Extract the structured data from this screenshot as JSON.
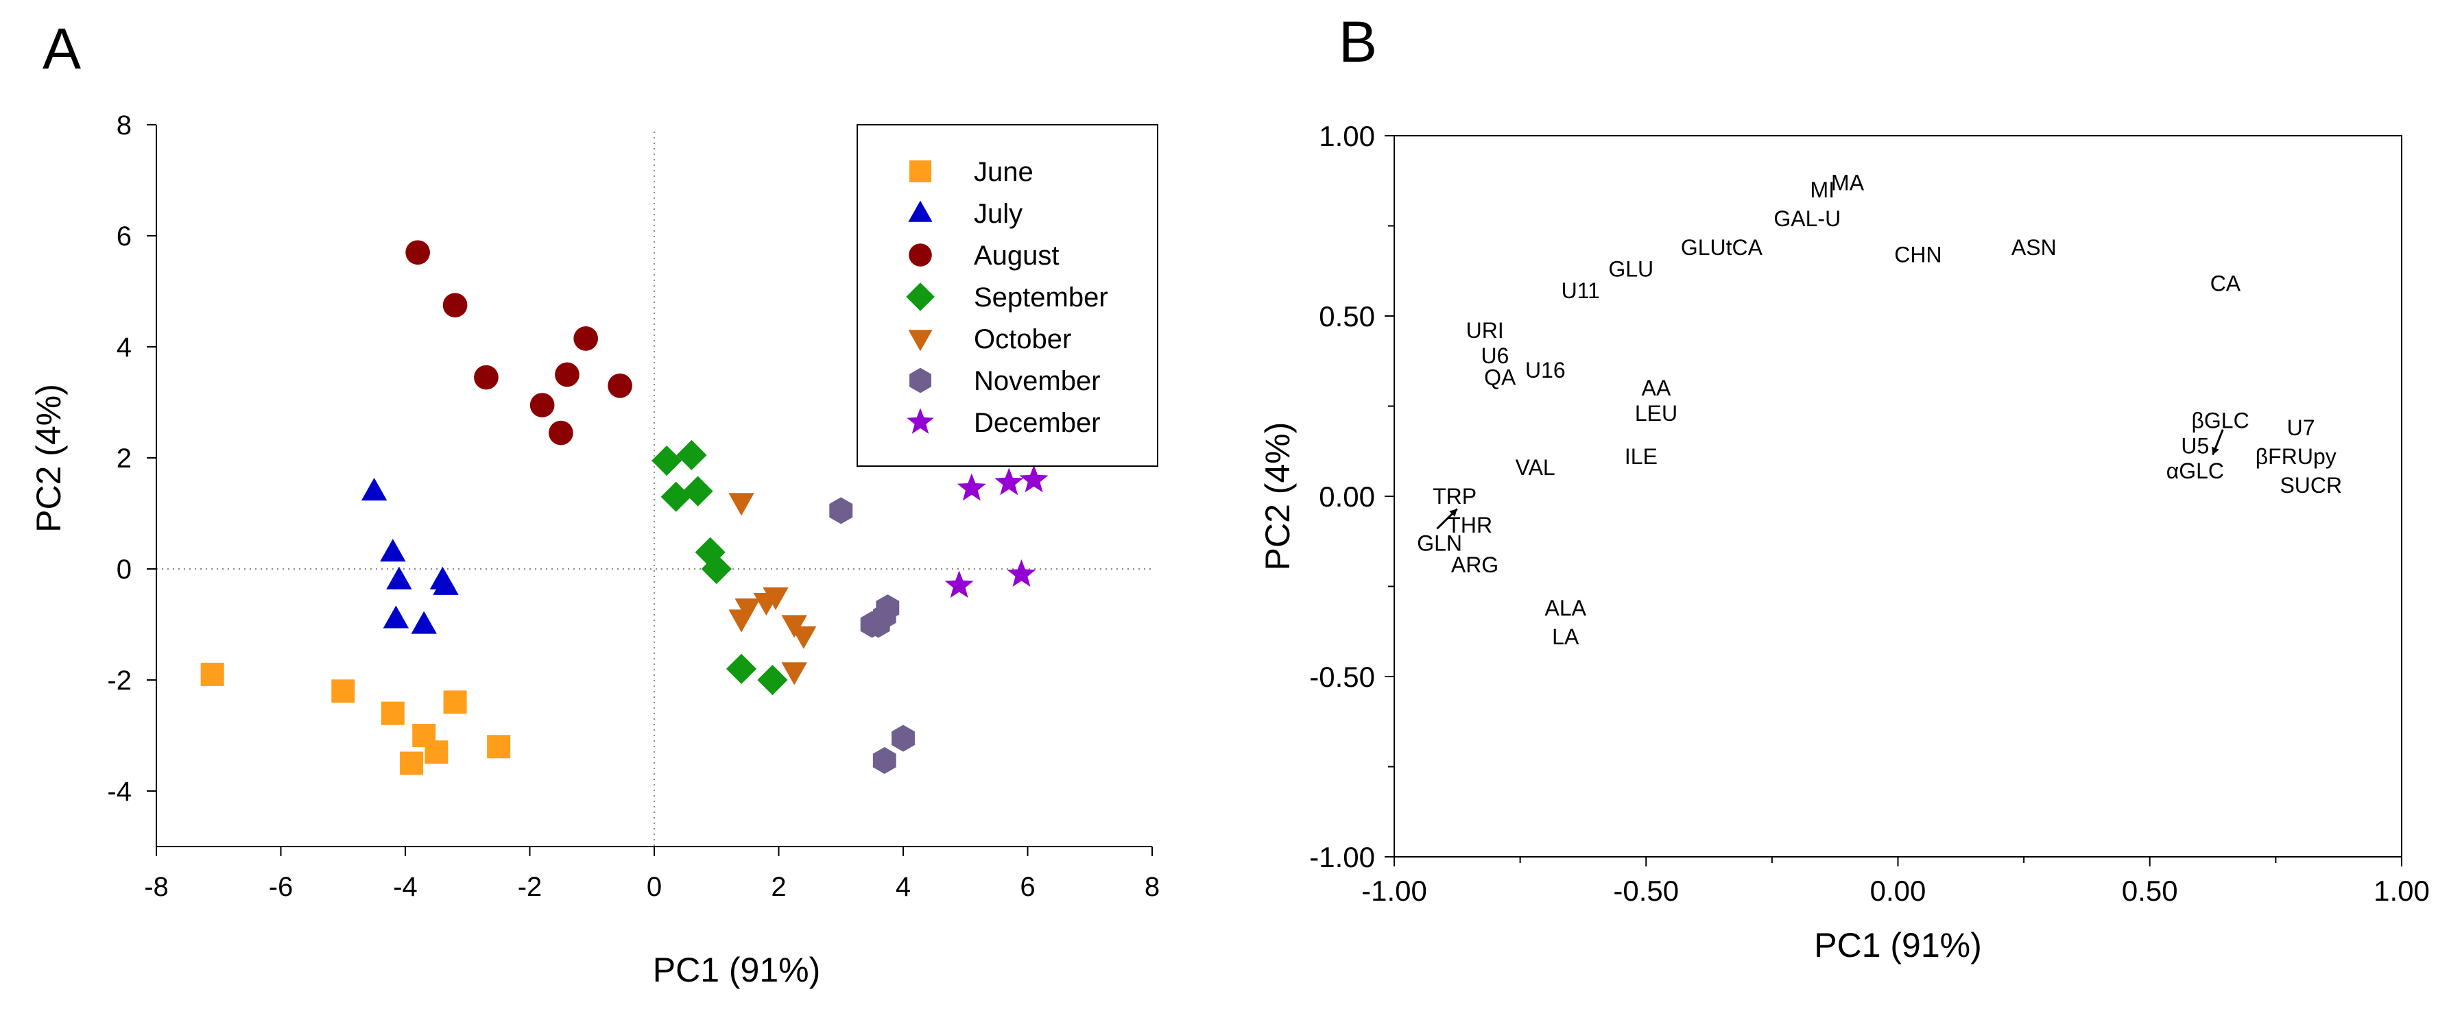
{
  "panels": {
    "a": {
      "label": "A"
    },
    "b": {
      "label": "B"
    }
  },
  "chart_data": [
    {
      "type": "scatter",
      "title": "",
      "xlabel": "PC1 (91%)",
      "ylabel": "PC2 (4%)",
      "xlim": [
        -8,
        8
      ],
      "ylim": [
        -5,
        8
      ],
      "x_ticks": [
        -8,
        -6,
        -4,
        -2,
        0,
        2,
        4,
        6,
        8
      ],
      "y_ticks": [
        -4,
        -2,
        0,
        2,
        4,
        6,
        8
      ],
      "grid": false,
      "reference_lines": "dotted lines at x=0 and y=0",
      "legend_position": "top-right",
      "series": [
        {
          "name": "June",
          "marker": "square",
          "color": "#FF9E1B",
          "points": [
            [
              -7.1,
              -1.9
            ],
            [
              -5.0,
              -2.2
            ],
            [
              -4.2,
              -2.6
            ],
            [
              -3.7,
              -3.0
            ],
            [
              -3.5,
              -3.3
            ],
            [
              -3.2,
              -2.4
            ],
            [
              -3.9,
              -3.5
            ],
            [
              -2.5,
              -3.2
            ]
          ]
        },
        {
          "name": "July",
          "marker": "triangle-up",
          "color": "#0000CC",
          "points": [
            [
              -4.5,
              1.4
            ],
            [
              -4.2,
              0.3
            ],
            [
              -4.1,
              -0.2
            ],
            [
              -3.4,
              -0.2
            ],
            [
              -3.35,
              -0.3
            ],
            [
              -4.15,
              -0.9
            ],
            [
              -3.7,
              -1.0
            ]
          ]
        },
        {
          "name": "August",
          "marker": "circle",
          "color": "#8B0000",
          "points": [
            [
              -3.8,
              5.7
            ],
            [
              -3.2,
              4.75
            ],
            [
              -2.7,
              3.45
            ],
            [
              -1.1,
              4.15
            ],
            [
              -1.4,
              3.5
            ],
            [
              -0.55,
              3.3
            ],
            [
              -1.8,
              2.95
            ],
            [
              -1.5,
              2.45
            ]
          ]
        },
        {
          "name": "September",
          "marker": "diamond",
          "color": "#119911",
          "points": [
            [
              0.2,
              1.95
            ],
            [
              0.6,
              2.05
            ],
            [
              0.35,
              1.3
            ],
            [
              0.7,
              1.4
            ],
            [
              0.9,
              0.3
            ],
            [
              1.0,
              0.0
            ],
            [
              1.4,
              -1.8
            ],
            [
              1.9,
              -2.0
            ]
          ]
        },
        {
          "name": "October",
          "marker": "triangle-down",
          "color": "#CC6611",
          "points": [
            [
              1.4,
              1.2
            ],
            [
              1.5,
              -0.7
            ],
            [
              1.8,
              -0.6
            ],
            [
              1.95,
              -0.5
            ],
            [
              1.4,
              -0.9
            ],
            [
              2.25,
              -1.0
            ],
            [
              2.4,
              -1.2
            ],
            [
              2.25,
              -1.85
            ]
          ]
        },
        {
          "name": "November",
          "marker": "hexagon",
          "color": "#6E5F8E",
          "points": [
            [
              3.0,
              1.05
            ],
            [
              3.75,
              -0.7
            ],
            [
              3.7,
              -0.85
            ],
            [
              3.5,
              -1.0
            ],
            [
              3.6,
              -1.0
            ],
            [
              4.0,
              -3.05
            ],
            [
              3.7,
              -3.45
            ]
          ]
        },
        {
          "name": "December",
          "marker": "star",
          "color": "#9400D3",
          "points": [
            [
              5.1,
              1.45
            ],
            [
              5.7,
              1.55
            ],
            [
              6.1,
              1.6
            ],
            [
              4.9,
              -0.3
            ],
            [
              5.9,
              -0.1
            ]
          ]
        }
      ]
    },
    {
      "type": "scatter",
      "title": "",
      "xlabel": "PC1 (91%)",
      "ylabel": "PC2 (4%)",
      "xlim": [
        -1.0,
        1.0
      ],
      "ylim": [
        -1.0,
        1.0
      ],
      "x_ticks": [
        "-1.00",
        "-0.50",
        "0.00",
        "0.50",
        "1.00"
      ],
      "y_ticks": [
        "-1.00",
        "-0.50",
        "0.00",
        "0.50",
        "1.00"
      ],
      "grid": false,
      "series": [
        {
          "name": "loadings",
          "marker": "text-label",
          "points": [
            {
              "label": "MI",
              "x": -0.15,
              "y": 0.85
            },
            {
              "label": "MA",
              "x": -0.1,
              "y": 0.87
            },
            {
              "label": "GAL-U",
              "x": -0.18,
              "y": 0.77
            },
            {
              "label": "GLUtCA",
              "x": -0.35,
              "y": 0.69
            },
            {
              "label": "CHN",
              "x": 0.04,
              "y": 0.67
            },
            {
              "label": "ASN",
              "x": 0.27,
              "y": 0.69
            },
            {
              "label": "GLU",
              "x": -0.53,
              "y": 0.63
            },
            {
              "label": "U11",
              "x": -0.63,
              "y": 0.57
            },
            {
              "label": "CA",
              "x": 0.65,
              "y": 0.59
            },
            {
              "label": "URI",
              "x": -0.82,
              "y": 0.46
            },
            {
              "label": "U6",
              "x": -0.8,
              "y": 0.39
            },
            {
              "label": "U16",
              "x": -0.7,
              "y": 0.35
            },
            {
              "label": "QA",
              "x": -0.79,
              "y": 0.33
            },
            {
              "label": "AA",
              "x": -0.48,
              "y": 0.3
            },
            {
              "label": "LEU",
              "x": -0.48,
              "y": 0.23
            },
            {
              "label": "βGLC",
              "x": 0.64,
              "y": 0.21
            },
            {
              "label": "U7",
              "x": 0.8,
              "y": 0.19
            },
            {
              "label": "U5",
              "x": 0.59,
              "y": 0.14
            },
            {
              "label": "ILE",
              "x": -0.51,
              "y": 0.11
            },
            {
              "label": "βFRUpy",
              "x": 0.79,
              "y": 0.11
            },
            {
              "label": "VAL",
              "x": -0.72,
              "y": 0.08
            },
            {
              "label": "αGLC",
              "x": 0.59,
              "y": 0.07
            },
            {
              "label": "SUCR",
              "x": 0.82,
              "y": 0.03
            },
            {
              "label": "TRP",
              "x": -0.88,
              "y": 0.0
            },
            {
              "label": "THR",
              "x": -0.85,
              "y": -0.08
            },
            {
              "label": "GLN",
              "x": -0.91,
              "y": -0.13
            },
            {
              "label": "ARG",
              "x": -0.84,
              "y": -0.19
            },
            {
              "label": "ALA",
              "x": -0.66,
              "y": -0.31
            },
            {
              "label": "LA",
              "x": -0.66,
              "y": -0.39
            }
          ]
        }
      ]
    }
  ]
}
